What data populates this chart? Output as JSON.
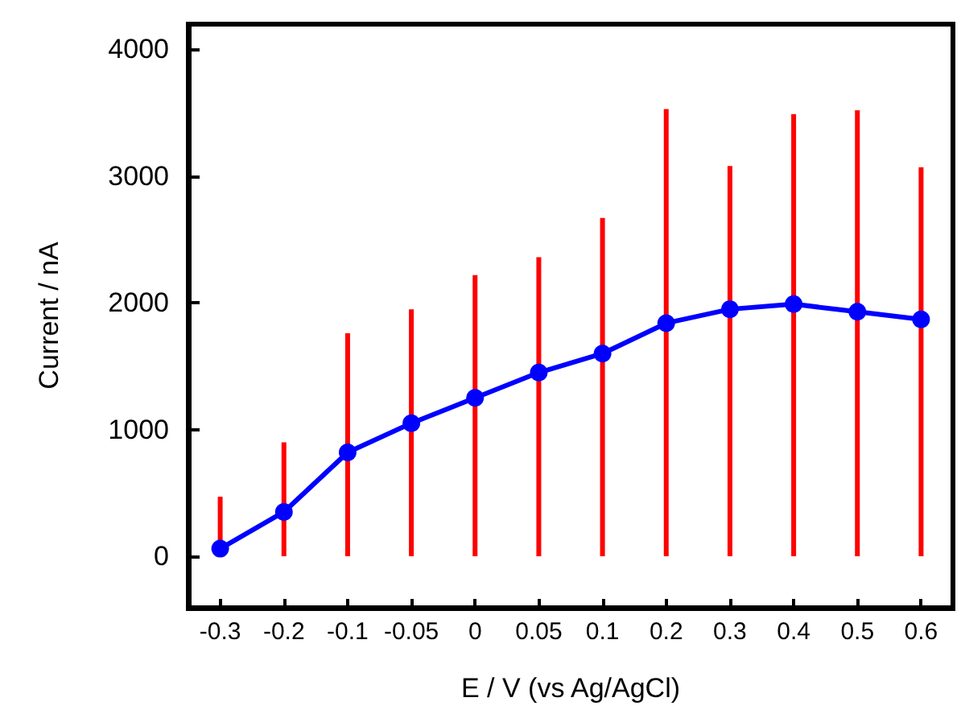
{
  "chart_data": {
    "type": "line",
    "xlabel": "E / V (vs Ag/AgCl)",
    "ylabel": "Current / nA",
    "categories": [
      "-0.3",
      "-0.2",
      "-0.1",
      "-0.05",
      "0",
      "0.05",
      "0.1",
      "0.2",
      "0.3",
      "0.4",
      "0.5",
      "0.6"
    ],
    "series": [
      {
        "type": "bar",
        "color": "#ff0000",
        "values": [
          470,
          900,
          1760,
          1950,
          2220,
          2360,
          2670,
          3530,
          3080,
          3490,
          3520,
          3070
        ]
      },
      {
        "color": "#0000ff",
        "values": [
          60,
          350,
          820,
          1050,
          1250,
          1450,
          1600,
          1840,
          1950,
          1990,
          1930,
          1870
        ]
      }
    ],
    "marker": "circle",
    "ylim": [
      -400,
      4200
    ],
    "yticks": [
      0,
      1000,
      2000,
      3000,
      4000
    ],
    "grid": false
  }
}
